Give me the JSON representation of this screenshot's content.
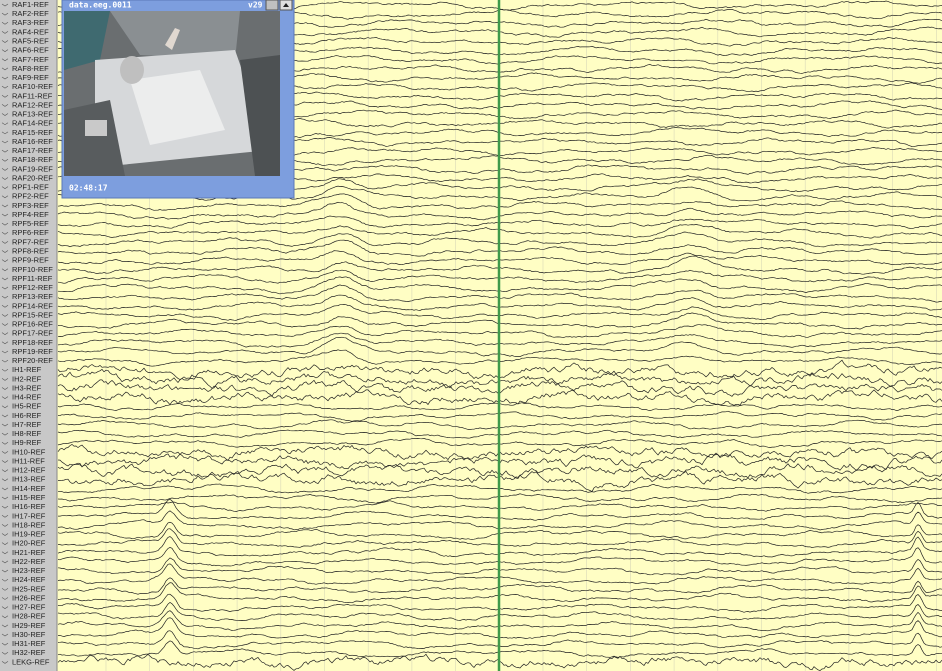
{
  "channels": [
    "RAF1-REF",
    "RAF2-REF",
    "RAF3-REF",
    "RAF4-REF",
    "RAF5-REF",
    "RAF6-REF",
    "RAF7-REF",
    "RAF8-REF",
    "RAF9-REF",
    "RAF10-REF",
    "RAF11-REF",
    "RAF12-REF",
    "RAF13-REF",
    "RAF14-REF",
    "RAF15-REF",
    "RAF16-REF",
    "RAF17-REF",
    "RAF18-REF",
    "RAF19-REF",
    "RAF20-REF",
    "RPF1-REF",
    "RPF2-REF",
    "RPF3-REF",
    "RPF4-REF",
    "RPF5-REF",
    "RPF6-REF",
    "RPF7-REF",
    "RPF8-REF",
    "RPF9-REF",
    "RPF10-REF",
    "RPF11-REF",
    "RPF12-REF",
    "RPF13-REF",
    "RPF14-REF",
    "RPF15-REF",
    "RPF16-REF",
    "RPF17-REF",
    "RPF18-REF",
    "RPF19-REF",
    "RPF20-REF",
    "IH1-REF",
    "IH2-REF",
    "IH3-REF",
    "IH4-REF",
    "IH5-REF",
    "IH6-REF",
    "IH7-REF",
    "IH8-REF",
    "IH9-REF",
    "IH10-REF",
    "IH11-REF",
    "IH12-REF",
    "IH13-REF",
    "IH14-REF",
    "IH15-REF",
    "IH16-REF",
    "IH17-REF",
    "IH18-REF",
    "IH19-REF",
    "IH20-REF",
    "IH21-REF",
    "IH22-REF",
    "IH23-REF",
    "IH24-REF",
    "IH25-REF",
    "IH26-REF",
    "IH27-REF",
    "IH28-REF",
    "IH29-REF",
    "IH30-REF",
    "IH31-REF",
    "IH32-REF",
    "LEKG-REF"
  ],
  "video": {
    "title": "data.eeg.0011",
    "version": "v29",
    "time": "02:48:17"
  }
}
